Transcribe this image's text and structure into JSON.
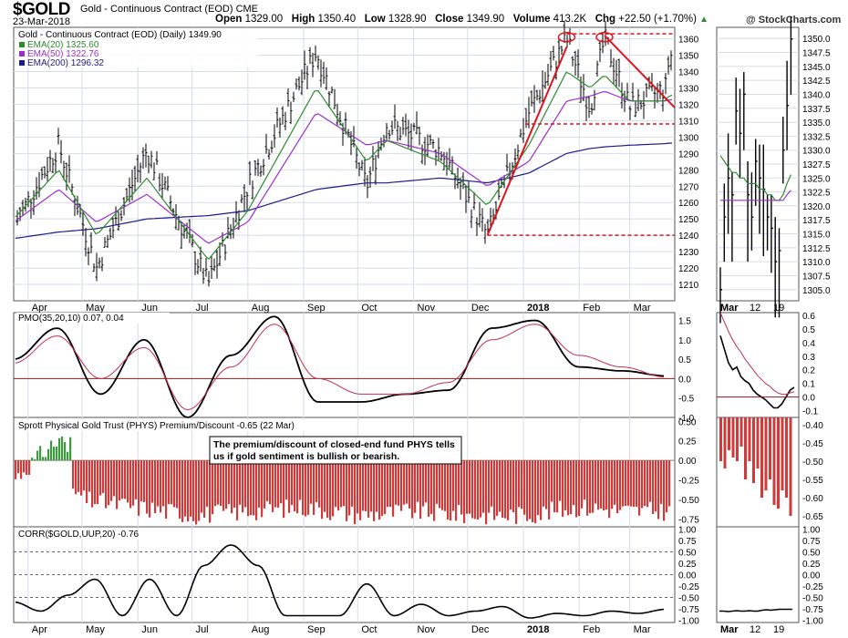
{
  "header": {
    "symbol": "$GOLD",
    "name": "Gold - Continuous Contract (EOD) CME",
    "date": "23-Mar-2018",
    "open_label": "Open",
    "open": "1329.00",
    "high_label": "High",
    "high": "1350.40",
    "low_label": "Low",
    "low": "1328.90",
    "close_label": "Close",
    "close": "1349.90",
    "volume_label": "Volume",
    "volume": "413.2K",
    "chg_label": "Chg",
    "chg": "+22.50 (+1.70%)",
    "chg_arrow": "▲",
    "brand": "@ StockCharts.com"
  },
  "colors": {
    "ema20": "#2e8b2e",
    "ema50": "#9b30c8",
    "ema200": "#1b1b8a",
    "price_bars": "#000000",
    "trendline": "#e0141e",
    "support": "#e0141e",
    "pmo": "#000000",
    "pmo_signal": "#c03050",
    "premium_negative": "#d23a3a",
    "premium_positive": "#3c9a3c",
    "corr": "#000000",
    "zero_line": "#8b1a1a",
    "grid": "#d6dde8",
    "callout_bg": "#ffffff"
  },
  "chart_data": [
    {
      "type": "line",
      "panel": "price",
      "title": "Gold - Continuous Contract (EOD) (Daily) 1349.90",
      "legend": [
        {
          "name": "EMA(20)",
          "value": "1325.60",
          "color_key": "ema20"
        },
        {
          "name": "EMA(50)",
          "value": "1322.76",
          "color_key": "ema50"
        },
        {
          "name": "EMA(200)",
          "value": "1296.32",
          "color_key": "ema200"
        }
      ],
      "x_labels": [
        "Apr",
        "May",
        "Jun",
        "Jul",
        "Aug",
        "Sep",
        "Oct",
        "Nov",
        "Dec",
        "2018",
        "Feb",
        "Mar"
      ],
      "y_ticks": [
        1210,
        1220,
        1230,
        1240,
        1250,
        1260,
        1270,
        1280,
        1290,
        1300,
        1310,
        1320,
        1330,
        1340,
        1350,
        1360
      ],
      "ylim": [
        1200,
        1367
      ],
      "grid": true,
      "x": [
        "2017-03-24",
        "2017-04-18",
        "2017-05-09",
        "2017-06-06",
        "2017-07-10",
        "2017-08-01",
        "2017-09-08",
        "2017-10-06",
        "2017-10-17",
        "2017-11-16",
        "2017-12-12",
        "2018-01-04",
        "2018-01-25",
        "2018-02-07",
        "2018-02-15",
        "2018-03-01",
        "2018-03-21",
        "2018-03-23"
      ],
      "close": [
        1245,
        1295,
        1220,
        1292,
        1210,
        1270,
        1352,
        1270,
        1308,
        1292,
        1240,
        1315,
        1360,
        1318,
        1360,
        1318,
        1330,
        1349.9
      ],
      "ema20": [
        1250,
        1280,
        1240,
        1275,
        1225,
        1255,
        1330,
        1285,
        1298,
        1285,
        1258,
        1295,
        1340,
        1330,
        1338,
        1322,
        1322,
        1325.6
      ],
      "ema50": [
        1248,
        1268,
        1248,
        1265,
        1235,
        1248,
        1315,
        1295,
        1298,
        1290,
        1270,
        1285,
        1322,
        1325,
        1328,
        1322,
        1322,
        1322.76
      ],
      "ema200": [
        1238,
        1242,
        1244,
        1250,
        1252,
        1255,
        1268,
        1272,
        1272,
        1275,
        1272,
        1278,
        1290,
        1293,
        1294,
        1295,
        1296,
        1296.32
      ],
      "annotations": [
        {
          "type": "trendline",
          "from": [
            "2017-12-12",
            1240
          ],
          "to": [
            "2018-01-25",
            1355
          ]
        },
        {
          "type": "trendline",
          "from": [
            "2018-02-15",
            1362
          ],
          "to": [
            "2018-03-26",
            1318
          ]
        },
        {
          "type": "hline",
          "value": 1363,
          "from": "2018-01-25",
          "to": "2018-03-26"
        },
        {
          "type": "hline",
          "value": 1308,
          "from": "2018-01-02",
          "to": "2018-03-26"
        },
        {
          "type": "hline",
          "value": 1240,
          "from": "2017-12-12",
          "to": "2018-03-26"
        }
      ]
    },
    {
      "type": "line",
      "panel": "pmo",
      "title": "PMO(35,20,10) 0.07, 0.04",
      "series": [
        {
          "name": "PMO",
          "values": [
            0.5,
            1.3,
            -0.4,
            1.0,
            -1.0,
            0.6,
            1.6,
            -0.6,
            -0.6,
            -0.4,
            -0.3,
            1.3,
            1.5,
            0.3,
            0.2,
            0.07
          ]
        },
        {
          "name": "Signal",
          "values": [
            0.4,
            1.1,
            0.0,
            0.8,
            -0.8,
            0.3,
            1.4,
            0.0,
            -0.4,
            -0.4,
            -0.1,
            1.0,
            1.4,
            0.6,
            0.3,
            0.04
          ]
        }
      ],
      "y_ticks": [
        -1.0,
        -0.5,
        0.0,
        0.5,
        1.0,
        1.5
      ],
      "ylim": [
        -1.0,
        1.7
      ]
    },
    {
      "type": "bar",
      "panel": "premium",
      "title": "Sprott Physical Gold Trust (PHYS) Premium/Discount -0.65 (22 Mar)",
      "callout": "The premium/discount of closed-end fund PHYS tells us if gold sentiment is bullish or bearish.",
      "y_ticks": [
        0.5,
        0.25,
        0.0,
        -0.25,
        -0.5,
        -0.75
      ],
      "ylim": [
        -0.85,
        0.55
      ],
      "x": [
        "2017-03-24",
        "2017-04-21",
        "2017-05-01",
        "2017-06-01",
        "2017-07-03",
        "2017-08-01",
        "2017-09-01",
        "2017-10-02",
        "2017-11-01",
        "2017-12-01",
        "2018-01-02",
        "2018-02-01",
        "2018-03-01",
        "2018-03-22"
      ],
      "values": [
        -0.25,
        0.35,
        -0.5,
        -0.6,
        -0.7,
        -0.65,
        -0.6,
        -0.7,
        -0.65,
        -0.7,
        -0.7,
        -0.6,
        -0.65,
        -0.65
      ]
    },
    {
      "type": "line",
      "panel": "corr",
      "title": "CORR($GOLD,UUP,20) -0.76",
      "y_ticks": [
        1.0,
        0.75,
        0.5,
        0.25,
        0.0,
        -0.25,
        -0.5,
        -0.75,
        -1.0
      ],
      "ylim": [
        -1.05,
        1.05
      ],
      "values": [
        -0.6,
        -0.8,
        -0.45,
        -0.1,
        -0.9,
        -0.1,
        -0.9,
        0.2,
        0.65,
        0.2,
        -0.9,
        -0.9,
        -0.9,
        -0.2,
        -0.9,
        -0.65,
        -0.9,
        -0.8,
        -0.7,
        -0.95,
        -0.85,
        -0.9,
        -0.8,
        -0.85,
        -0.76
      ]
    },
    {
      "type": "line",
      "panel": "zoom",
      "x_labels": [
        "Mar",
        "12",
        "19"
      ],
      "price_ticks": [
        1305.0,
        1307.5,
        1310.0,
        1312.5,
        1315.0,
        1317.5,
        1320.0,
        1322.5,
        1325.0,
        1327.5,
        1330.0,
        1332.5,
        1335.0,
        1337.5,
        1340.0,
        1342.5,
        1345.0,
        1347.5,
        1350.0
      ],
      "pmo_ticks": [
        0.6,
        0.5,
        0.4,
        0.3,
        0.2,
        0.1,
        0.0,
        -0.1
      ],
      "premium_ticks": [
        -0.4,
        -0.45,
        -0.5,
        -0.55,
        -0.6,
        -0.65
      ],
      "corr_ticks": [
        1.0,
        0.75,
        0.5,
        0.25,
        0.0,
        -0.25,
        -0.5,
        -0.75,
        -1.0
      ]
    }
  ]
}
